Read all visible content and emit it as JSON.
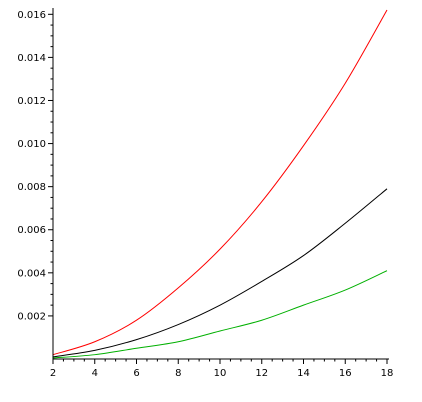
{
  "chart_data": {
    "type": "line",
    "title": "",
    "xlabel": "",
    "ylabel": "",
    "xlim": [
      2,
      18
    ],
    "ylim": [
      0,
      0.0162
    ],
    "grid": false,
    "legend": "none",
    "x_ticks": [
      2,
      4,
      6,
      8,
      10,
      12,
      14,
      16,
      18
    ],
    "x_tick_labels": [
      "2",
      "4",
      "6",
      "8",
      "10",
      "12",
      "14",
      "16",
      "18"
    ],
    "y_ticks": [
      0.002,
      0.004,
      0.006,
      0.008,
      0.01,
      0.012,
      0.014,
      0.016
    ],
    "y_tick_labels": [
      "0.002",
      "0.004",
      "0.006",
      "0.008",
      "0.010",
      "0.012",
      "0.014",
      "0.016"
    ],
    "x": [
      2,
      4,
      6,
      8,
      10,
      12,
      14,
      16,
      18
    ],
    "series": [
      {
        "color": "#ff0000",
        "values": [
          0.0002,
          0.0008,
          0.0018,
          0.0033,
          0.0051,
          0.0073,
          0.0099,
          0.0128,
          0.0162
        ]
      },
      {
        "color": "#000000",
        "values": [
          0.0001,
          0.0004,
          0.0009,
          0.0016,
          0.0025,
          0.0036,
          0.0048,
          0.0063,
          0.0079
        ]
      },
      {
        "color": "#00b000",
        "values": [
          5e-05,
          0.0002,
          0.0005,
          0.0008,
          0.0013,
          0.0018,
          0.0025,
          0.0032,
          0.0041
        ]
      }
    ]
  }
}
